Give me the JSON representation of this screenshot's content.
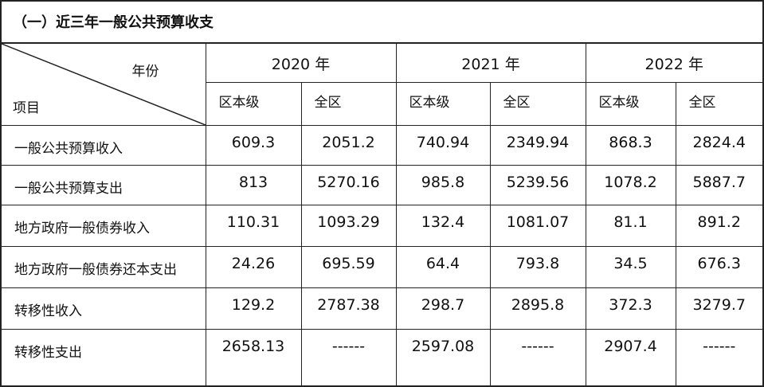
{
  "title": "（一）近三年一般公共预算收支",
  "header": {
    "corner_top": "年份",
    "corner_bottom": "项目",
    "years": [
      "2020 年",
      "2021 年",
      "2022 年"
    ],
    "sub": [
      "区本级",
      "全区"
    ]
  },
  "rows": [
    {
      "label": "一般公共预算收入",
      "values": [
        "609.3",
        "2051.2",
        "740.94",
        "2349.94",
        "868.3",
        "2824.4"
      ]
    },
    {
      "label": "一般公共预算支出",
      "values": [
        "813",
        "5270.16",
        "985.8",
        "5239.56",
        "1078.2",
        "5887.7"
      ]
    },
    {
      "label": "地方政府一般债券收入",
      "values": [
        "110.31",
        "1093.29",
        "132.4",
        "1081.07",
        "81.1",
        "891.2"
      ]
    },
    {
      "label": "地方政府一般债券还本支出",
      "values": [
        "24.26",
        "695.59",
        "64.4",
        "793.8",
        "34.5",
        "676.3"
      ]
    },
    {
      "label": "转移性收入",
      "values": [
        "129.2",
        "2787.38",
        "298.7",
        "2895.8",
        "372.3",
        "3279.7"
      ]
    },
    {
      "label": "转移性支出",
      "values": [
        "2658.13",
        "------",
        "2597.08",
        "------",
        "2907.4",
        "------"
      ]
    }
  ]
}
